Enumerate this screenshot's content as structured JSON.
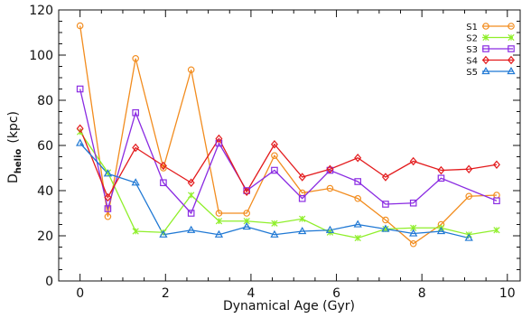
{
  "chart_data": {
    "type": "line",
    "title": "",
    "xlabel": "Dynamical Age (Gyr)",
    "ylabel_main": "D",
    "ylabel_sub": "helio",
    "ylabel_unit": "(kpc)",
    "xlim": [
      -0.5,
      10.3
    ],
    "ylim": [
      0,
      120
    ],
    "xticks": [
      0,
      2,
      4,
      6,
      8,
      10
    ],
    "yticks": [
      0,
      20,
      40,
      60,
      80,
      100,
      120
    ],
    "grid": false,
    "legend_position": "top-right",
    "x": [
      0,
      0.65,
      1.3,
      1.95,
      2.6,
      3.25,
      3.9,
      4.55,
      5.2,
      5.85,
      6.5,
      7.15,
      7.8,
      8.45,
      9.1,
      9.75
    ],
    "series": [
      {
        "name": "S1",
        "color": "#f28c1e",
        "marker": "circle",
        "values": [
          113,
          28.5,
          98.5,
          50,
          93.5,
          30,
          30,
          55.5,
          39,
          41,
          36.5,
          27,
          16.5,
          25,
          37.5,
          38
        ]
      },
      {
        "name": "S2",
        "color": "#8fef2a",
        "marker": "x",
        "values": [
          66,
          48,
          22,
          21.5,
          38,
          26.5,
          26.5,
          25.5,
          27.5,
          21.5,
          19,
          23,
          23.5,
          23.5,
          20.5,
          22.5
        ]
      },
      {
        "name": "S3",
        "color": "#8a2be2",
        "marker": "square",
        "values": [
          85,
          32,
          74.5,
          43.5,
          30,
          61,
          40,
          49,
          36.5,
          49,
          44,
          34,
          34.5,
          45.5,
          null,
          35.5
        ]
      },
      {
        "name": "S4",
        "color": "#e31a1c",
        "marker": "diamond",
        "values": [
          67.5,
          37,
          59,
          51,
          43.5,
          63,
          39.5,
          60.5,
          46,
          49.5,
          54.5,
          46,
          53,
          49,
          49.5,
          51.5
        ]
      },
      {
        "name": "S5",
        "color": "#1f78d4",
        "marker": "triangle",
        "values": [
          61,
          47.5,
          43.5,
          20.5,
          22.5,
          20.5,
          24,
          20.5,
          22,
          22.5,
          25,
          23,
          21,
          22,
          19,
          null
        ]
      }
    ]
  }
}
